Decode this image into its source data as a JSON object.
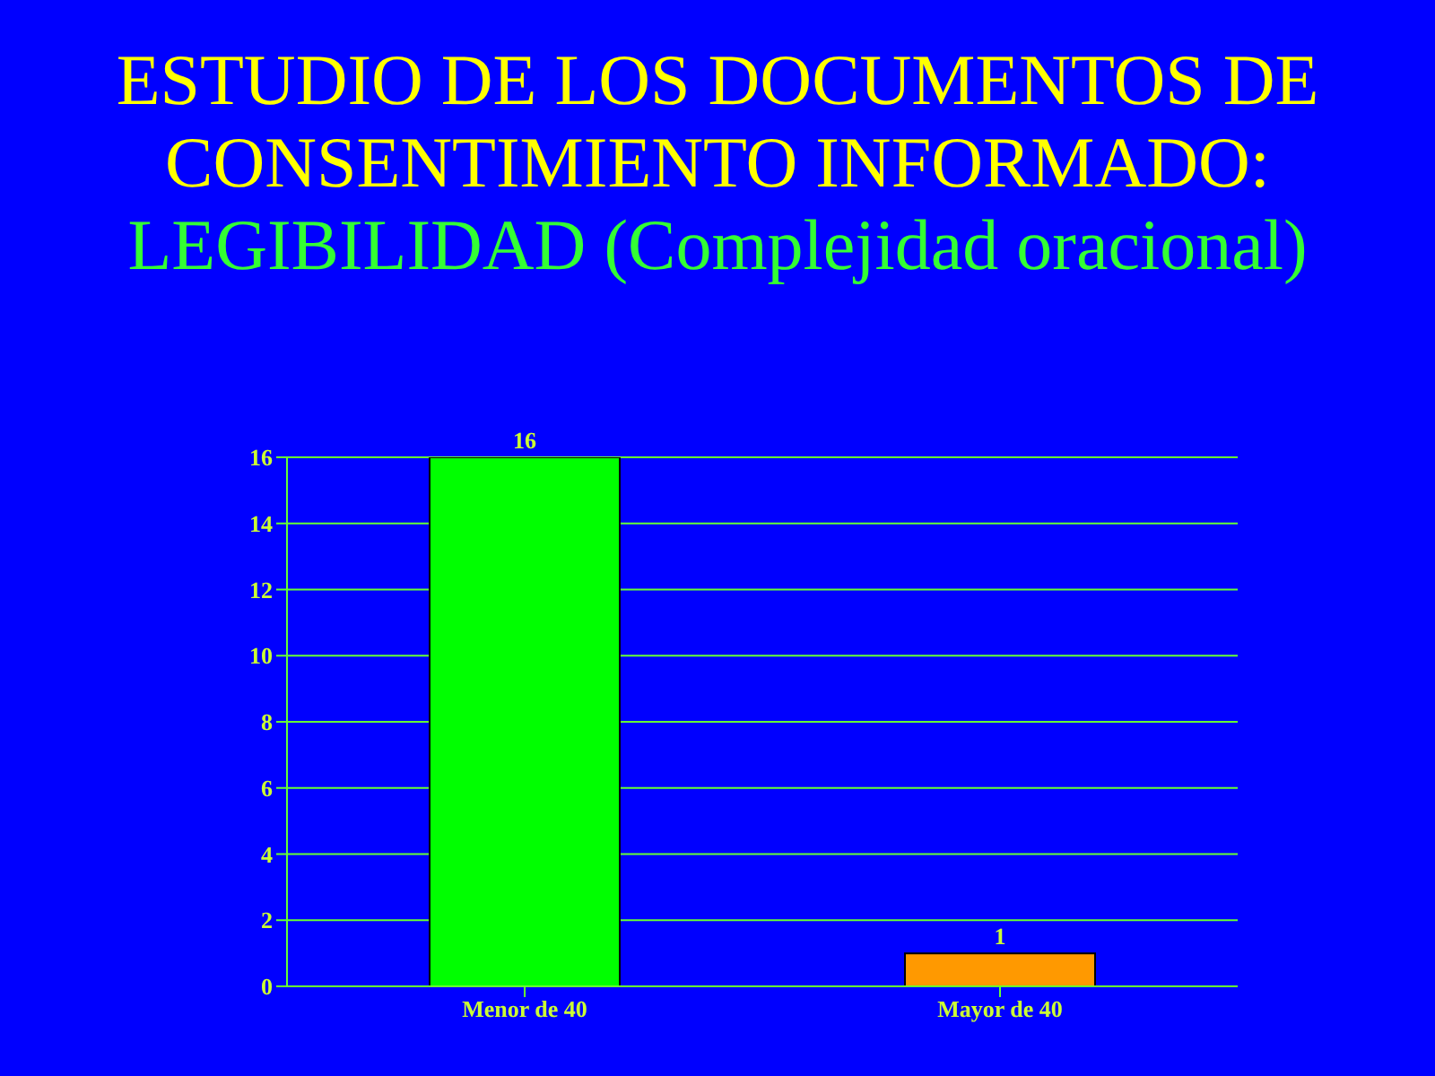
{
  "chart_data": {
    "type": "bar",
    "title": "ESTUDIO DE LOS DOCUMENTOS DE CONSENTIMIENTO INFORMADO:",
    "subtitle": "LEGIBILIDAD (Complejidad oracional)",
    "categories": [
      "Menor de 40",
      "Mayor de 40"
    ],
    "values": [
      16,
      1
    ],
    "colors": [
      "#00ff00",
      "#ff9900"
    ],
    "ylim": [
      0,
      16
    ],
    "yticks": [
      0,
      2,
      4,
      6,
      8,
      10,
      12,
      14,
      16
    ],
    "grid": "y",
    "data_labels": true
  }
}
